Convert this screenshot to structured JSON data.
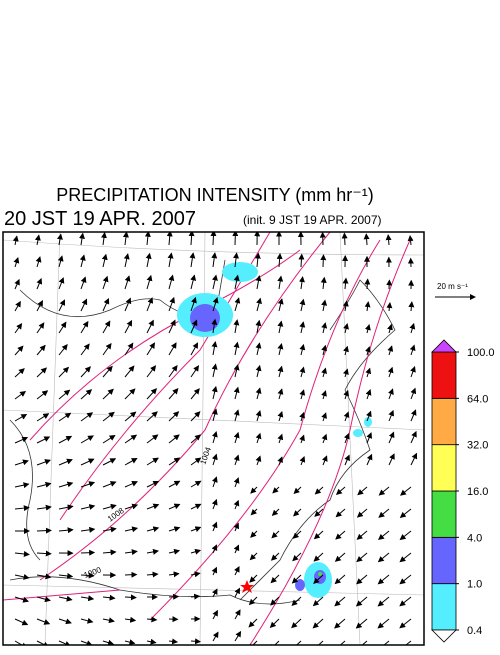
{
  "title": "PRECIPITATION INTENSITY (mm hr⁻¹)",
  "valid_time": "20 JST 19 APR. 2007",
  "init_time": "(init. 9 JST 19 APR. 2007)",
  "reference_vector": "20 m s⁻¹",
  "isobar_labels": [
    "1008",
    "1004",
    "1000"
  ],
  "colorbar": {
    "bounds": [
      {
        "value": 0.4,
        "label": "0.4"
      },
      {
        "value": 1,
        "label": "1.0"
      },
      {
        "value": 4,
        "label": "4.0"
      },
      {
        "value": 16,
        "label": "16.0"
      },
      {
        "value": 32,
        "label": "32.0"
      },
      {
        "value": 64,
        "label": "64.0"
      },
      {
        "value": 100,
        "label": "100.0"
      }
    ],
    "colors": [
      "#55eeff",
      "#6666ff",
      "#44dd44",
      "#ffff55",
      "#ffaa44",
      "#ee1111"
    ],
    "under_color": "#ffffff",
    "over_color": "#cc44ff"
  }
}
